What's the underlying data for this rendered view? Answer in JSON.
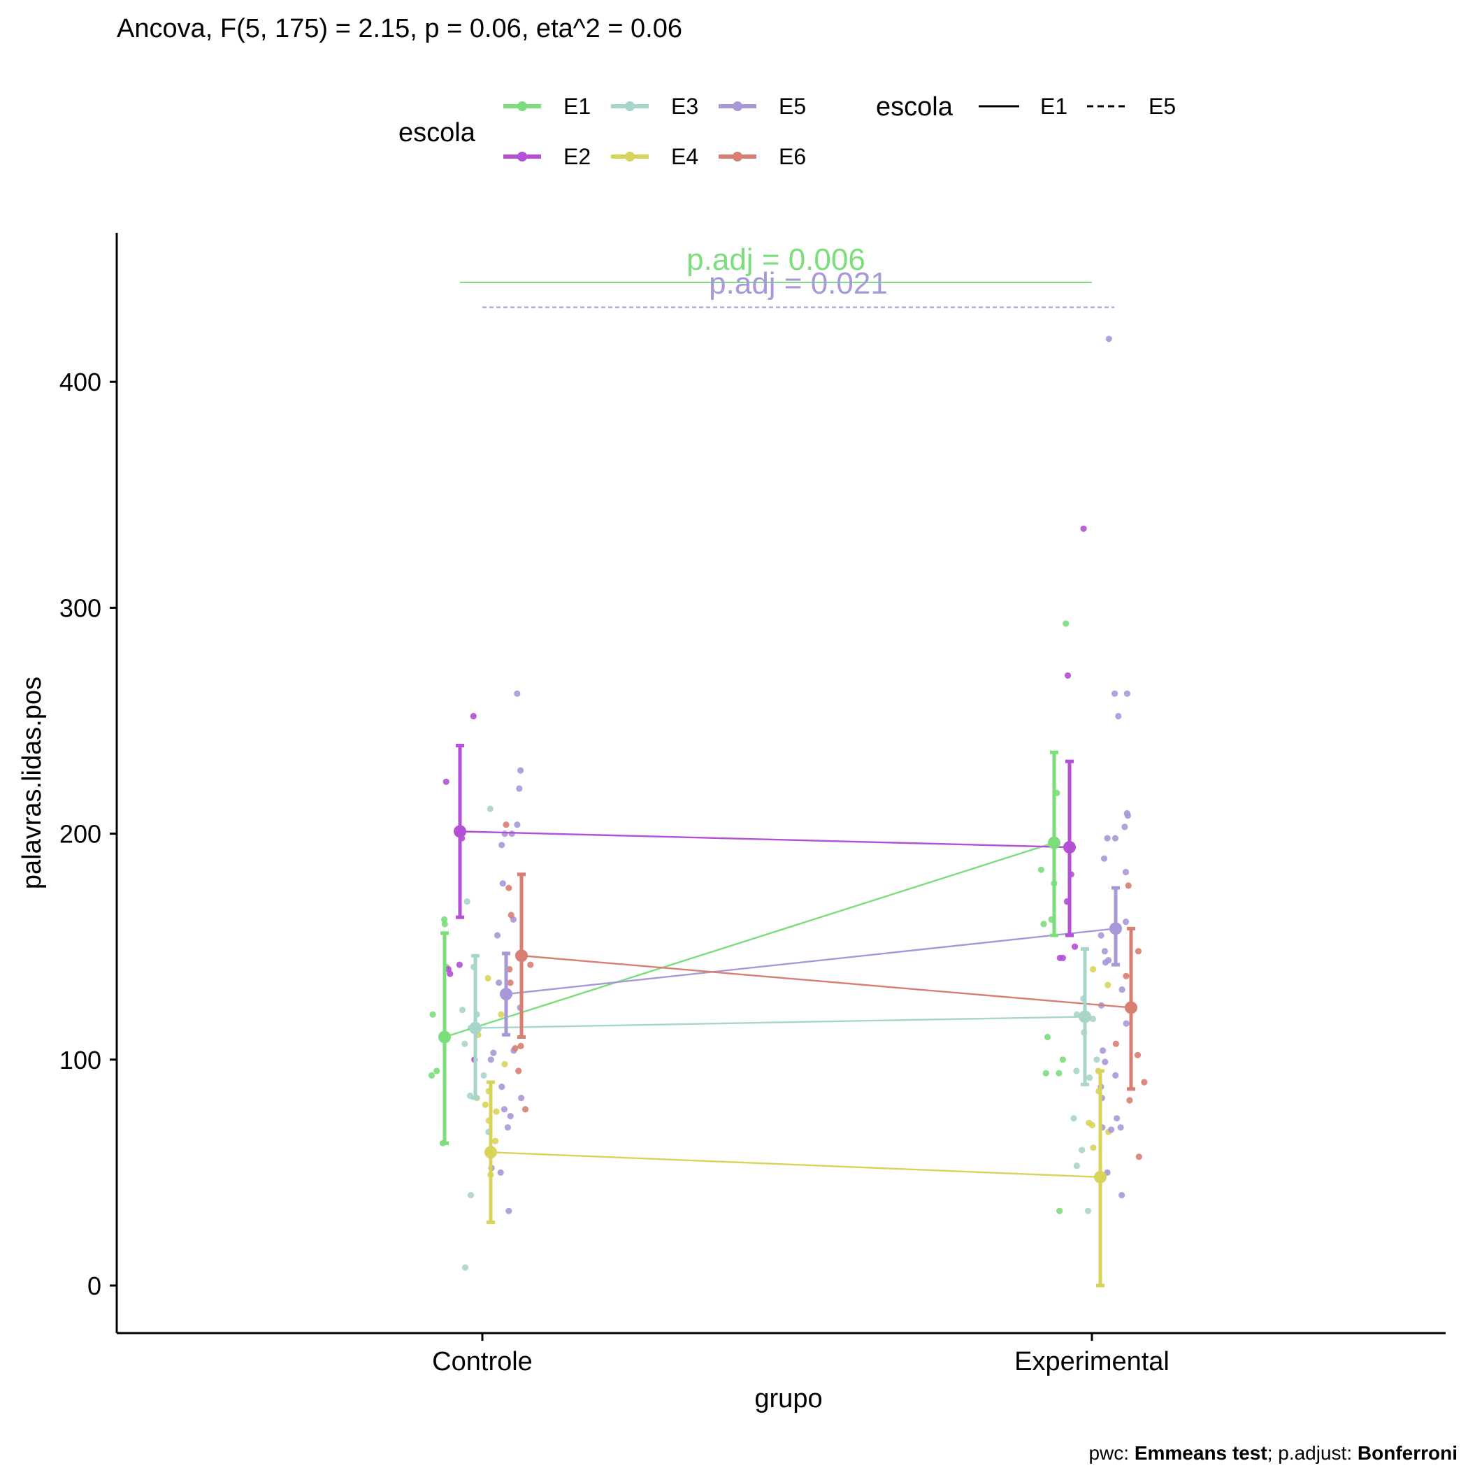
{
  "chart_data": {
    "type": "line",
    "title": "Ancova, F(5, 175) = 2.15, p = 0.06, eta^2 = 0.06",
    "xlabel": "grupo",
    "ylabel": "palavras.lidas.pos",
    "categories": [
      "Controle",
      "Experimental"
    ],
    "ylim": [
      -20,
      465
    ],
    "yticks": [
      0,
      100,
      200,
      300,
      400
    ],
    "grid": false,
    "legend_position": "top",
    "legend_color": {
      "title": "escola",
      "entries": [
        "E1",
        "E2",
        "E3",
        "E4",
        "E5",
        "E6"
      ]
    },
    "legend_linetype": {
      "title": "escola",
      "entries": [
        {
          "name": "E1",
          "linetype": "solid"
        },
        {
          "name": "E5",
          "linetype": "dashed"
        }
      ]
    },
    "series": [
      {
        "name": "E1",
        "color": "#7BDE7B",
        "means": [
          110,
          196
        ],
        "ci_low": [
          63,
          155
        ],
        "ci_high": [
          156,
          236
        ],
        "points": [
          [
            162,
            141,
            120,
            95,
            63,
            160,
            93
          ],
          [
            293,
            218,
            162,
            110,
            100,
            94,
            184,
            178,
            94,
            33,
            160
          ]
        ]
      },
      {
        "name": "E2",
        "color": "#B44FD6",
        "means": [
          201,
          194
        ],
        "ci_low": [
          163,
          155
        ],
        "ci_high": [
          239,
          232
        ],
        "points": [
          [
            198,
            142,
            138,
            223,
            252,
            100,
            140
          ],
          [
            270,
            335,
            145,
            170,
            182,
            150,
            145
          ]
        ]
      },
      {
        "name": "E3",
        "color": "#A8D5C9",
        "means": [
          114,
          119
        ],
        "ci_low": [
          83,
          89
        ],
        "ci_high": [
          146,
          149
        ],
        "points": [
          [
            8,
            211,
            141,
            170,
            120,
            84,
            107,
            93,
            40,
            114,
            122,
            68
          ],
          [
            120,
            100,
            112,
            53,
            33,
            60,
            118,
            92,
            74,
            95,
            127
          ]
        ]
      },
      {
        "name": "E4",
        "color": "#D8D45A",
        "means": [
          59,
          48
        ],
        "ci_low": [
          28,
          0
        ],
        "ci_high": [
          90,
          95
        ],
        "points": [
          [
            111,
            83,
            136,
            77,
            64,
            98,
            80,
            73,
            49,
            86,
            120
          ],
          [
            86,
            95,
            140,
            71,
            133,
            72,
            61,
            68
          ]
        ]
      },
      {
        "name": "E5",
        "color": "#A898D8",
        "means": [
          129,
          158
        ],
        "ci_low": [
          111,
          142
        ],
        "ci_high": [
          147,
          176
        ],
        "points": [
          [
            262,
            228,
            220,
            204,
            104,
            75,
            70,
            52,
            50,
            195,
            155,
            178,
            200,
            162,
            134,
            123,
            100,
            88,
            33,
            78,
            103,
            83,
            200
          ],
          [
            262,
            252,
            262,
            189,
            203,
            208,
            144,
            155,
            99,
            131,
            40,
            70,
            209,
            198,
            183,
            143,
            124,
            104,
            88,
            74,
            161,
            116,
            148,
            93,
            83,
            419,
            198,
            70,
            69,
            50
          ]
        ]
      },
      {
        "name": "E6",
        "color": "#D87E72",
        "means": [
          146,
          123
        ],
        "ci_low": [
          110,
          87
        ],
        "ci_high": [
          182,
          158
        ],
        "points": [
          [
            105,
            142,
            134,
            164,
            204,
            78,
            176,
            95,
            140,
            106
          ],
          [
            177,
            107,
            57,
            82,
            148,
            137,
            90,
            102
          ]
        ]
      }
    ],
    "annotations": [
      {
        "text": "p.adj = 0.006",
        "series": "E1",
        "linetype": "solid",
        "y": 444
      },
      {
        "text": "p.adj = 0.021",
        "series": "E5",
        "linetype": "dashed",
        "y": 433
      }
    ],
    "caption_parts": [
      {
        "text": "pwc: ",
        "bold": false
      },
      {
        "text": "Emmeans test",
        "bold": true
      },
      {
        "text": "; p.adjust: ",
        "bold": false
      },
      {
        "text": "Bonferroni",
        "bold": true
      }
    ]
  }
}
